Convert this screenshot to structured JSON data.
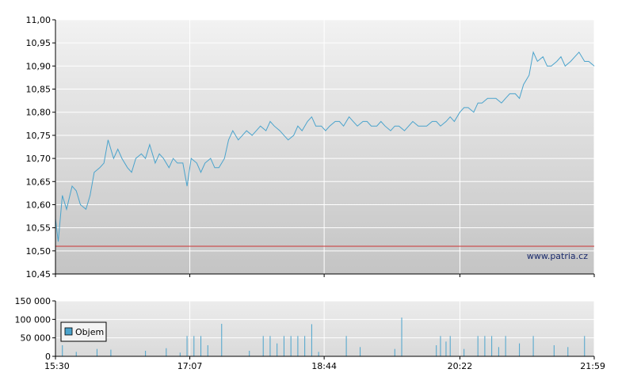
{
  "watermark": "www.patria.cz",
  "colors": {
    "price_line": "#4aa3cc",
    "volume_bar": "#4aa3cc",
    "reference_line": "#cc3333",
    "grid": "#ffffff",
    "axis": "#000000"
  },
  "chart_data": [
    {
      "type": "line",
      "ylim": [
        10.45,
        11.0
      ],
      "y_ticks": [
        "11,00",
        "10,95",
        "10,90",
        "10,85",
        "10,80",
        "10,75",
        "10,70",
        "10,65",
        "10,60",
        "10,55",
        "10,50",
        "10,45"
      ],
      "y_tick_values": [
        11.0,
        10.95,
        10.9,
        10.85,
        10.8,
        10.75,
        10.7,
        10.65,
        10.6,
        10.55,
        10.5,
        10.45
      ],
      "x_ticks": [
        "15:30",
        "17:07",
        "18:44",
        "20:22",
        "21:59"
      ],
      "reference_value": 10.51,
      "series": [
        {
          "x": [
            "15:30",
            "15:32",
            "15:35",
            "15:38",
            "15:42",
            "15:45",
            "15:48",
            "15:52",
            "15:55",
            "15:58",
            "16:02",
            "16:05",
            "16:08",
            "16:12",
            "16:15",
            "16:18",
            "16:22",
            "16:25",
            "16:28",
            "16:32",
            "16:35",
            "16:38",
            "16:42",
            "16:45",
            "16:48",
            "16:52",
            "16:55",
            "16:58",
            "17:02",
            "17:05",
            "17:08",
            "17:12",
            "17:15",
            "17:18",
            "17:22",
            "17:25",
            "17:28",
            "17:32",
            "17:35",
            "17:38",
            "17:42",
            "17:45",
            "17:48",
            "17:52",
            "17:55",
            "17:58",
            "18:02",
            "18:05",
            "18:08",
            "18:12",
            "18:15",
            "18:18",
            "18:22",
            "18:25",
            "18:28",
            "18:32",
            "18:35",
            "18:38",
            "18:42",
            "18:45",
            "18:48",
            "18:52",
            "18:55",
            "18:58",
            "19:02",
            "19:05",
            "19:08",
            "19:12",
            "19:15",
            "19:18",
            "19:22",
            "19:25",
            "19:28",
            "19:32",
            "19:35",
            "19:38",
            "19:42",
            "19:45",
            "19:48",
            "19:52",
            "19:55",
            "19:58",
            "20:02",
            "20:05",
            "20:08",
            "20:12",
            "20:15",
            "20:18",
            "20:22",
            "20:25",
            "20:28",
            "20:32",
            "20:35",
            "20:38",
            "20:42",
            "20:45",
            "20:48",
            "20:52",
            "20:55",
            "20:58",
            "21:02",
            "21:05",
            "21:08",
            "21:12",
            "21:15",
            "21:18",
            "21:22",
            "21:25",
            "21:28",
            "21:32",
            "21:35",
            "21:38",
            "21:42",
            "21:45",
            "21:48",
            "21:52",
            "21:55",
            "21:59"
          ],
          "values": [
            10.57,
            10.52,
            10.62,
            10.59,
            10.64,
            10.63,
            10.6,
            10.59,
            10.62,
            10.67,
            10.68,
            10.69,
            10.74,
            10.7,
            10.72,
            10.7,
            10.68,
            10.67,
            10.7,
            10.71,
            10.7,
            10.73,
            10.69,
            10.71,
            10.7,
            10.68,
            10.7,
            10.69,
            10.69,
            10.64,
            10.7,
            10.69,
            10.67,
            10.69,
            10.7,
            10.68,
            10.68,
            10.7,
            10.74,
            10.76,
            10.74,
            10.75,
            10.76,
            10.75,
            10.76,
            10.77,
            10.76,
            10.78,
            10.77,
            10.76,
            10.75,
            10.74,
            10.75,
            10.77,
            10.76,
            10.78,
            10.79,
            10.77,
            10.77,
            10.76,
            10.77,
            10.78,
            10.78,
            10.77,
            10.79,
            10.78,
            10.77,
            10.78,
            10.78,
            10.77,
            10.77,
            10.78,
            10.77,
            10.76,
            10.77,
            10.77,
            10.76,
            10.77,
            10.78,
            10.77,
            10.77,
            10.77,
            10.78,
            10.78,
            10.77,
            10.78,
            10.79,
            10.78,
            10.8,
            10.81,
            10.81,
            10.8,
            10.82,
            10.82,
            10.83,
            10.83,
            10.83,
            10.82,
            10.83,
            10.84,
            10.84,
            10.83,
            10.86,
            10.88,
            10.93,
            10.91,
            10.92,
            10.9,
            10.9,
            10.91,
            10.92,
            10.9,
            10.91,
            10.92,
            10.93,
            10.91,
            10.91,
            10.9
          ]
        }
      ]
    },
    {
      "type": "bar",
      "ylim": [
        0,
        150000
      ],
      "y_ticks": [
        "150 000",
        "100 000",
        "50 000",
        "0"
      ],
      "y_tick_values": [
        150000,
        100000,
        50000,
        0
      ],
      "x_ticks": [
        "15:30",
        "17:07",
        "18:44",
        "20:22",
        "21:59"
      ],
      "legend": "top-left",
      "series": [
        {
          "name": "Objem",
          "x": [
            "15:35",
            "15:45",
            "16:00",
            "16:10",
            "16:35",
            "16:50",
            "17:00",
            "17:05",
            "17:10",
            "17:15",
            "17:20",
            "17:30",
            "17:50",
            "18:00",
            "18:05",
            "18:10",
            "18:15",
            "18:20",
            "18:25",
            "18:30",
            "18:35",
            "18:40",
            "19:00",
            "19:10",
            "19:35",
            "19:40",
            "20:05",
            "20:08",
            "20:12",
            "20:15",
            "20:25",
            "20:35",
            "20:40",
            "20:45",
            "20:50",
            "20:55",
            "21:05",
            "21:15",
            "21:30",
            "21:40",
            "21:52"
          ],
          "values": [
            30000,
            12000,
            20000,
            18000,
            15000,
            22000,
            10000,
            55000,
            55000,
            55000,
            30000,
            88000,
            15000,
            55000,
            55000,
            35000,
            55000,
            55000,
            55000,
            55000,
            87000,
            12000,
            55000,
            25000,
            20000,
            105000,
            30000,
            55000,
            40000,
            55000,
            20000,
            55000,
            55000,
            55000,
            25000,
            55000,
            35000,
            55000,
            30000,
            25000,
            55000
          ]
        }
      ]
    }
  ]
}
